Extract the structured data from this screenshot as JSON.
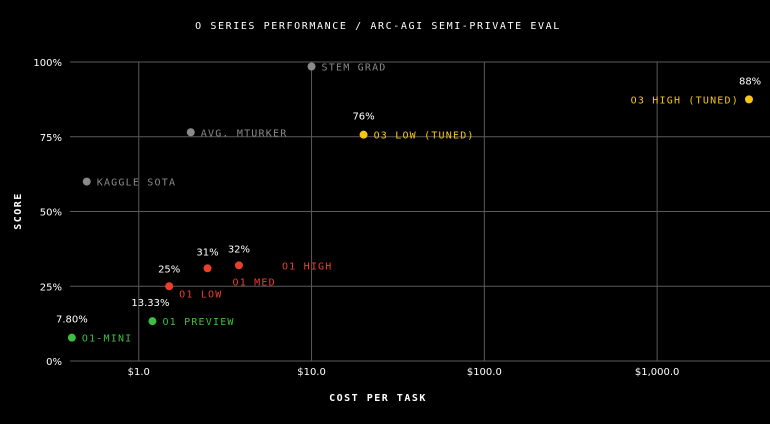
{
  "chart_data": {
    "type": "scatter",
    "title": "O SERIES PERFORMANCE / ARC-AGI SEMI-PRIVATE EVAL",
    "xlabel": "COST PER TASK",
    "ylabel": "SCORE",
    "x_scale": "log",
    "xlim": [
      0.4,
      4500
    ],
    "ylim": [
      0,
      100
    ],
    "x_ticks": [
      {
        "value": 1,
        "label": "$1.0"
      },
      {
        "value": 10,
        "label": "$10.0"
      },
      {
        "value": 100,
        "label": "$100.0"
      },
      {
        "value": 1000,
        "label": "$1,000.0"
      }
    ],
    "y_ticks": [
      {
        "value": 0,
        "label": "0%"
      },
      {
        "value": 25,
        "label": "25%"
      },
      {
        "value": 50,
        "label": "50%"
      },
      {
        "value": 75,
        "label": "75%"
      },
      {
        "value": 100,
        "label": "100%"
      }
    ],
    "grid": true,
    "points": [
      {
        "name": "STEM GRAD",
        "x": 10,
        "y": 98.5,
        "value_label": "",
        "color": "#8a8a8a"
      },
      {
        "name": "AVG. MTURKER",
        "x": 2,
        "y": 76.5,
        "value_label": "",
        "color": "#8a8a8a"
      },
      {
        "name": "KAGGLE SOTA",
        "x": 0.5,
        "y": 60,
        "value_label": "",
        "color": "#8a8a8a"
      },
      {
        "name": "O3 HIGH (TUNED)",
        "x": 3400,
        "y": 87.5,
        "value_label": "88%",
        "color": "#f5c518"
      },
      {
        "name": "O3 LOW (TUNED)",
        "x": 20,
        "y": 75.7,
        "value_label": "76%",
        "color": "#f5c518"
      },
      {
        "name": "O1 HIGH",
        "x": 3.8,
        "y": 32,
        "value_label": "32%",
        "color": "#e8402a"
      },
      {
        "name": "O1 MED",
        "x": 2.5,
        "y": 31,
        "value_label": "31%",
        "color": "#e8402a"
      },
      {
        "name": "O1 LOW",
        "x": 1.5,
        "y": 25,
        "value_label": "25%",
        "color": "#e8402a"
      },
      {
        "name": "O1 PREVIEW",
        "x": 1.2,
        "y": 13.33,
        "value_label": "13.33%",
        "color": "#3fbf3f"
      },
      {
        "name": "O1-MINI",
        "x": 0.41,
        "y": 7.8,
        "value_label": "7.80%",
        "color": "#3fbf3f"
      }
    ]
  }
}
